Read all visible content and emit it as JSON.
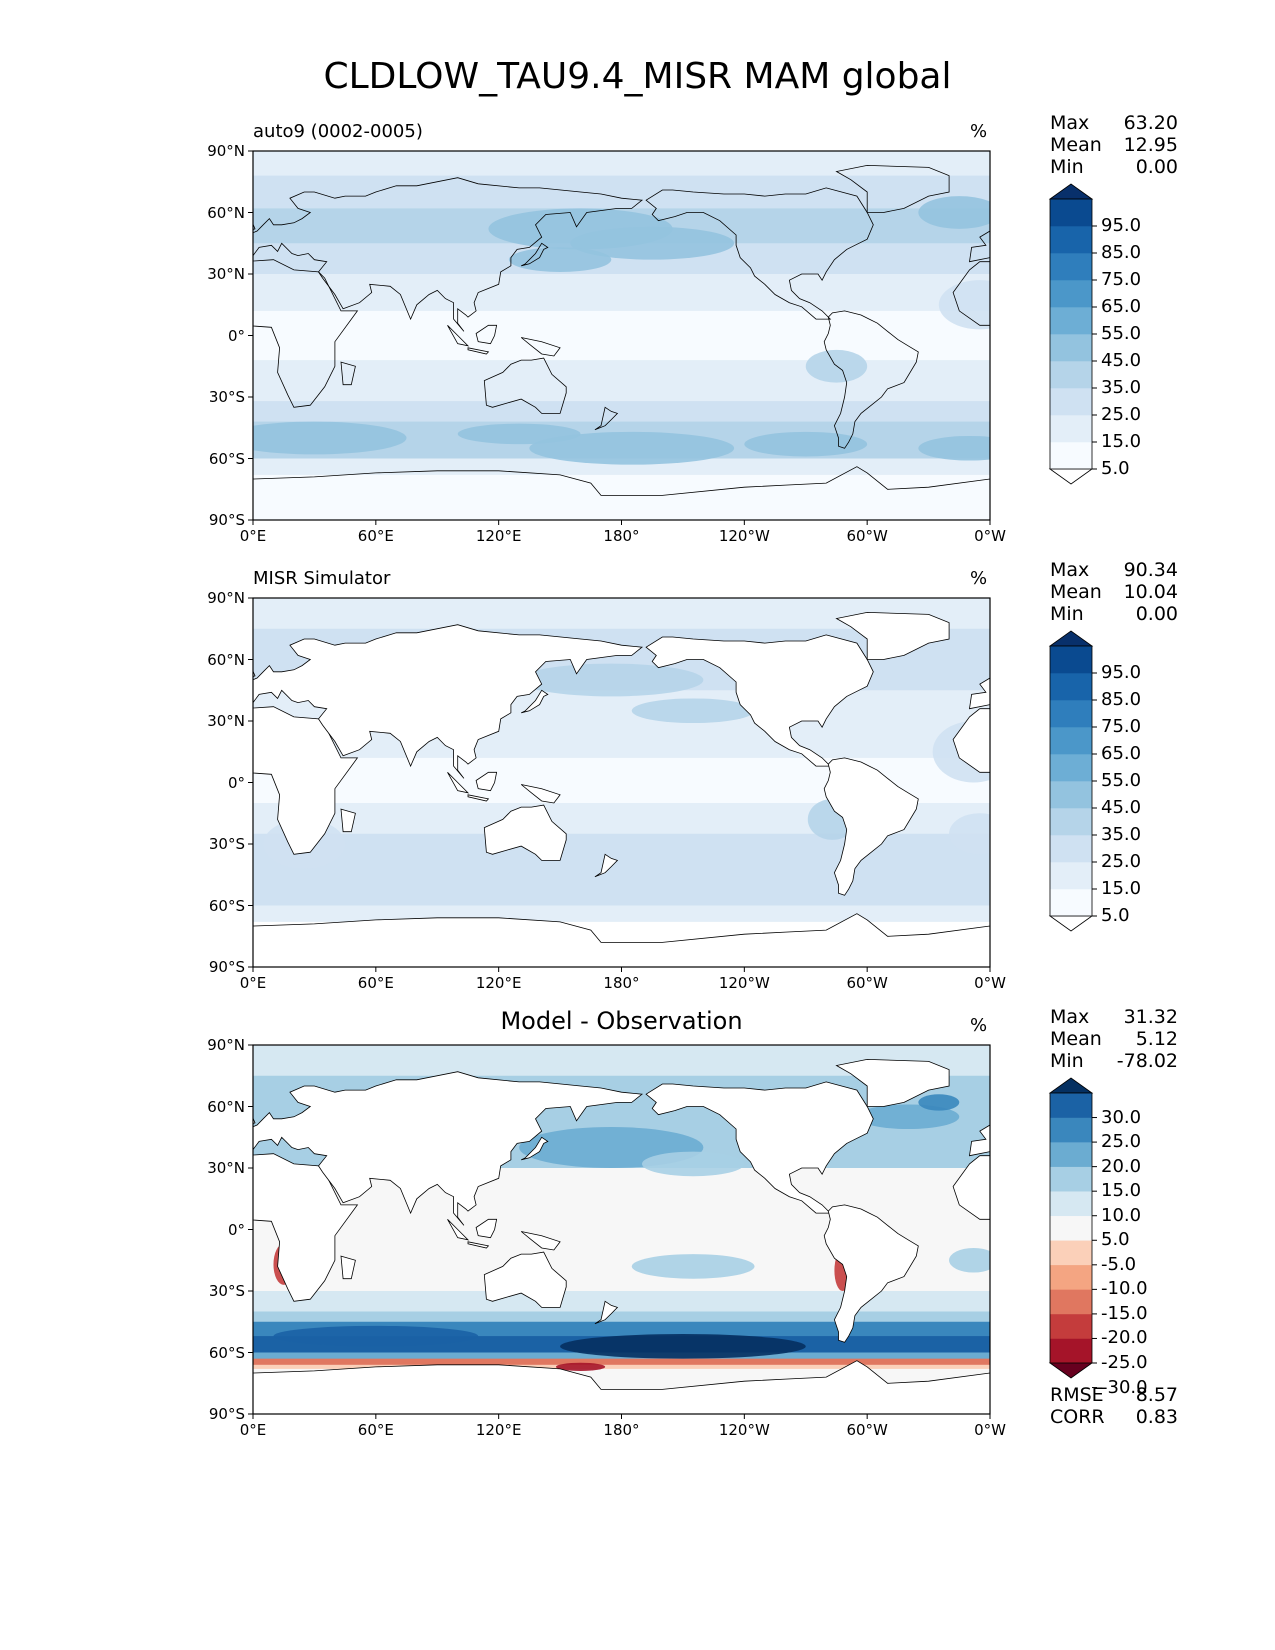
{
  "title": "CLDLOW_TAU9.4_MISR MAM global",
  "x_ticks": [
    "0°E",
    "60°E",
    "120°E",
    "180°",
    "120°W",
    "60°W",
    "0°W"
  ],
  "y_ticks": [
    "90°N",
    "60°N",
    "30°N",
    "0°",
    "30°S",
    "60°S",
    "90°S"
  ],
  "panels": [
    {
      "title": "auto9 (0002-0005)",
      "title_align": "left",
      "unit": "%",
      "stats": {
        "max_label": "Max",
        "max": "63.20",
        "mean_label": "Mean",
        "mean": "12.95",
        "min_label": "Min",
        "min": "0.00"
      },
      "colorbar": {
        "labels": [
          "95.0",
          "85.0",
          "75.0",
          "65.0",
          "55.0",
          "45.0",
          "35.0",
          "25.0",
          "15.0",
          "5.0"
        ],
        "colors": [
          "#ffffff",
          "#f7fbff",
          "#e3eef8",
          "#cfe1f2",
          "#b5d4e9",
          "#93c3df",
          "#6daed5",
          "#4b97c9",
          "#2f7ebc",
          "#1864aa",
          "#0a4a90",
          "#08306b"
        ]
      }
    },
    {
      "title": "MISR Simulator",
      "title_align": "left",
      "unit": "%",
      "stats": {
        "max_label": "Max",
        "max": "90.34",
        "mean_label": "Mean",
        "mean": "10.04",
        "min_label": "Min",
        "min": "0.00"
      },
      "colorbar": {
        "labels": [
          "95.0",
          "85.0",
          "75.0",
          "65.0",
          "55.0",
          "45.0",
          "35.0",
          "25.0",
          "15.0",
          "5.0"
        ],
        "colors": [
          "#ffffff",
          "#f7fbff",
          "#e3eef8",
          "#cfe1f2",
          "#b5d4e9",
          "#93c3df",
          "#6daed5",
          "#4b97c9",
          "#2f7ebc",
          "#1864aa",
          "#0a4a90",
          "#08306b"
        ]
      }
    },
    {
      "title": "Model - Observation",
      "title_align": "center",
      "unit": "%",
      "stats": {
        "max_label": "Max",
        "max": "31.32",
        "mean_label": "Mean",
        "mean": "5.12",
        "min_label": "Min",
        "min": "-78.02"
      },
      "colorbar": {
        "labels": [
          "30.0",
          "25.0",
          "20.0",
          "15.0",
          "10.0",
          "5.0",
          "-5.0",
          "-10.0",
          "-15.0",
          "-20.0",
          "-25.0",
          "-30.0"
        ],
        "colors": [
          "#67001f",
          "#a51429",
          "#c43c3c",
          "#e07760",
          "#f4a582",
          "#fbd0b9",
          "#f7f7f7",
          "#d6e8f2",
          "#a7cfe4",
          "#6bacd1",
          "#3a87bd",
          "#1b62a5",
          "#053061"
        ]
      },
      "footer": {
        "rmse_label": "RMSE",
        "rmse": "8.57",
        "corr_label": "CORR",
        "corr": "0.83"
      }
    }
  ],
  "chart_data": [
    {
      "type": "heatmap",
      "title": "auto9 (0002-0005)",
      "units": "%",
      "xlim": [
        0,
        360
      ],
      "ylim": [
        -90,
        90
      ],
      "contour_levels": [
        0,
        5,
        15,
        25,
        35,
        45,
        55,
        65,
        75,
        85,
        95,
        100
      ],
      "zonal_pattern_approx": [
        {
          "lat_range": [
            60,
            90
          ],
          "value": 12
        },
        {
          "lat_range": [
            30,
            60
          ],
          "value": 22
        },
        {
          "lat_range": [
            0,
            30
          ],
          "value": 8
        },
        {
          "lat_range": [
            -30,
            0
          ],
          "value": 10
        },
        {
          "lat_range": [
            -60,
            -30
          ],
          "value": 30
        },
        {
          "lat_range": [
            -90,
            -60
          ],
          "value": 3
        }
      ],
      "max": 63.2,
      "mean": 12.95,
      "min": 0.0
    },
    {
      "type": "heatmap",
      "title": "MISR Simulator",
      "units": "%",
      "xlim": [
        0,
        360
      ],
      "ylim": [
        -90,
        90
      ],
      "contour_levels": [
        0,
        5,
        15,
        25,
        35,
        45,
        55,
        65,
        75,
        85,
        95,
        100
      ],
      "zonal_pattern_approx": [
        {
          "lat_range": [
            60,
            90
          ],
          "value": 8
        },
        {
          "lat_range": [
            30,
            60
          ],
          "value": 15
        },
        {
          "lat_range": [
            0,
            30
          ],
          "value": 7
        },
        {
          "lat_range": [
            -30,
            0
          ],
          "value": 10
        },
        {
          "lat_range": [
            -60,
            -30
          ],
          "value": 14
        },
        {
          "lat_range": [
            -90,
            -60
          ],
          "value": 0
        }
      ],
      "max": 90.34,
      "mean": 10.04,
      "min": 0.0
    },
    {
      "type": "heatmap",
      "title": "Model - Observation",
      "units": "%",
      "xlim": [
        0,
        360
      ],
      "ylim": [
        -90,
        90
      ],
      "contour_levels": [
        -30,
        -25,
        -20,
        -15,
        -10,
        -5,
        5,
        10,
        15,
        20,
        25,
        30
      ],
      "zonal_pattern_approx": [
        {
          "lat_range": [
            60,
            90
          ],
          "value": 3
        },
        {
          "lat_range": [
            30,
            60
          ],
          "value": 8
        },
        {
          "lat_range": [
            0,
            30
          ],
          "value": 1
        },
        {
          "lat_range": [
            -30,
            0
          ],
          "value": 2
        },
        {
          "lat_range": [
            -60,
            -30
          ],
          "value": 18
        },
        {
          "lat_range": [
            -70,
            -60
          ],
          "value": -12
        }
      ],
      "max": 31.32,
      "mean": 5.12,
      "min": -78.02,
      "rmse": 8.57,
      "corr": 0.83
    }
  ]
}
